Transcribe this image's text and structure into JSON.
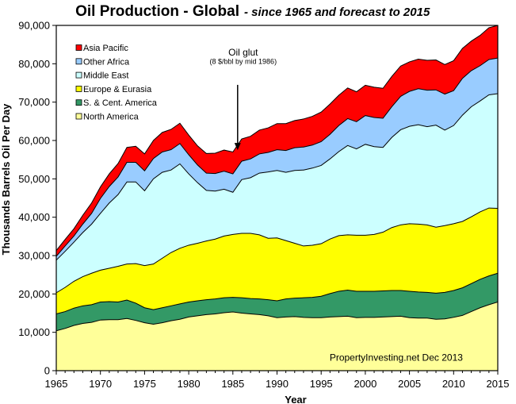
{
  "chart_data": {
    "type": "area",
    "stacked": true,
    "title": "Oil Production - Global",
    "subtitle": "- since 1965 and forecast to 2015",
    "xlabel": "Year",
    "ylabel": "Thousands Barrels Oil Per Day",
    "xlim": [
      1965,
      2015
    ],
    "ylim": [
      0,
      90000
    ],
    "x_ticks": [
      1965,
      1970,
      1975,
      1980,
      1985,
      1990,
      1995,
      2000,
      2005,
      2010,
      2015
    ],
    "y_ticks": [
      0,
      10000,
      20000,
      30000,
      40000,
      50000,
      60000,
      70000,
      80000,
      90000
    ],
    "y_tick_labels": [
      "0",
      "10,000",
      "20,000",
      "30,000",
      "40,000",
      "50,000",
      "60,000",
      "70,000",
      "80,000",
      "90,000"
    ],
    "x_tick_labels": [
      "1965",
      "1970",
      "1975",
      "1980",
      "1985",
      "1990",
      "1995",
      "2000",
      "2005",
      "2010",
      "2015"
    ],
    "legend_position": "top-left",
    "grid": false,
    "x": [
      1965,
      1966,
      1967,
      1968,
      1969,
      1970,
      1971,
      1972,
      1973,
      1974,
      1975,
      1976,
      1977,
      1978,
      1979,
      1980,
      1981,
      1982,
      1983,
      1984,
      1985,
      1986,
      1987,
      1988,
      1989,
      1990,
      1991,
      1992,
      1993,
      1994,
      1995,
      1996,
      1997,
      1998,
      1999,
      2000,
      2001,
      2002,
      2003,
      2004,
      2005,
      2006,
      2007,
      2008,
      2009,
      2010,
      2011,
      2012,
      2013,
      2014,
      2015
    ],
    "series": [
      {
        "name": "North America",
        "color": "#ffff99",
        "values": [
          10400,
          11000,
          11800,
          12300,
          12600,
          13200,
          13300,
          13300,
          13600,
          13100,
          12500,
          12100,
          12500,
          13000,
          13400,
          14000,
          14300,
          14600,
          14800,
          15100,
          15300,
          15000,
          14800,
          14600,
          14300,
          13800,
          14000,
          14100,
          13900,
          13800,
          13800,
          14000,
          14100,
          14200,
          13800,
          13900,
          13900,
          14000,
          14100,
          14200,
          13800,
          13700,
          13700,
          13400,
          13500,
          13900,
          14400,
          15400,
          16400,
          17200,
          17900
        ]
      },
      {
        "name": "S. & Cent. America",
        "color": "#339966",
        "values": [
          4400,
          4400,
          4500,
          4600,
          4600,
          4700,
          4700,
          4600,
          4800,
          4500,
          3900,
          3800,
          3900,
          3900,
          4000,
          3900,
          3900,
          3900,
          3900,
          3900,
          3800,
          4000,
          4000,
          4100,
          4200,
          4400,
          4700,
          4800,
          5100,
          5300,
          5600,
          6100,
          6600,
          6800,
          6900,
          6800,
          6800,
          6800,
          6800,
          6700,
          6900,
          6800,
          6700,
          6800,
          6900,
          7000,
          7200,
          7300,
          7400,
          7500,
          7500
        ]
      },
      {
        "name": "Europe & Eurasia",
        "color": "#ffff00",
        "values": [
          5500,
          6300,
          7000,
          7600,
          8200,
          8300,
          8700,
          9300,
          9400,
          10300,
          11000,
          11900,
          12900,
          13900,
          14500,
          14800,
          15000,
          15300,
          15600,
          16100,
          16400,
          16800,
          17000,
          16700,
          16000,
          16400,
          15200,
          14300,
          13500,
          13600,
          13700,
          14200,
          14500,
          14400,
          14600,
          14600,
          14800,
          15300,
          16400,
          17100,
          17600,
          17700,
          17600,
          17200,
          17400,
          17400,
          17300,
          17400,
          17600,
          17700,
          16900
        ]
      },
      {
        "name": "Middle East",
        "color": "#ccffff",
        "values": [
          8500,
          9400,
          10200,
          11500,
          12800,
          14800,
          17000,
          18700,
          21400,
          21300,
          19500,
          22200,
          22400,
          21500,
          22000,
          18600,
          15800,
          13200,
          12500,
          12200,
          11000,
          14000,
          14500,
          16100,
          17300,
          17600,
          17800,
          19000,
          19800,
          20100,
          20400,
          20900,
          21900,
          23300,
          22500,
          23700,
          22900,
          22100,
          23500,
          24800,
          25400,
          25900,
          25600,
          26600,
          24900,
          25600,
          27700,
          28700,
          28900,
          29500,
          29900
        ]
      },
      {
        "name": "Other Africa",
        "color": "#99ccff",
        "values": [
          1000,
          1400,
          1600,
          2200,
          2800,
          3900,
          4300,
          4600,
          5100,
          5100,
          5200,
          5300,
          5300,
          5300,
          5300,
          5000,
          4600,
          4500,
          4600,
          4700,
          4800,
          4800,
          4900,
          5000,
          5100,
          5400,
          5700,
          5900,
          6000,
          6000,
          6200,
          6400,
          6800,
          7000,
          7100,
          7500,
          7600,
          7600,
          8000,
          8700,
          9100,
          9400,
          9500,
          9200,
          9400,
          9100,
          9600,
          9400,
          9200,
          9200,
          9300
        ]
      },
      {
        "name": "Asia Pacific",
        "color": "#ff0000",
        "values": [
          1500,
          1700,
          1900,
          2300,
          2700,
          3000,
          3300,
          3500,
          3900,
          4200,
          4400,
          4700,
          5100,
          5300,
          5300,
          5100,
          5000,
          5100,
          5300,
          5500,
          5700,
          5800,
          5900,
          6200,
          6400,
          6800,
          7000,
          7100,
          7300,
          7500,
          7700,
          7900,
          7900,
          8000,
          7800,
          7900,
          7900,
          7800,
          7900,
          7900,
          7700,
          7700,
          7800,
          7800,
          7700,
          7800,
          7800,
          7700,
          7900,
          8300,
          8500
        ]
      }
    ],
    "annotations": [
      {
        "text": "Oil glut",
        "x": 1985,
        "y": 83000
      },
      {
        "text": "(8 $/bbl by mid 1986)",
        "x": 1985,
        "y": 80600
      },
      {
        "text": "PropertyInvesting.net  Dec 2013",
        "x": 2003.5,
        "y": 3400
      }
    ],
    "arrow": {
      "x": 1985,
      "y_from": 74500,
      "y_to": 57500
    }
  }
}
